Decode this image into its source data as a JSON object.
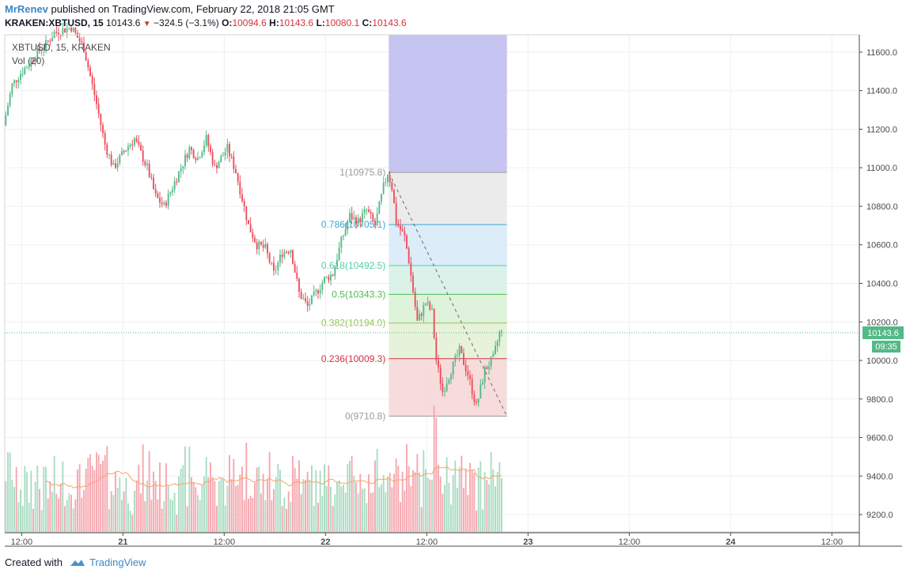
{
  "header": {
    "author": "MrRenev",
    "published_text": "published on TradingView.com, February 22, 2018 21:05 GMT",
    "symbol": "KRAKEN:XBTUSD, 15",
    "last": "10143.6",
    "change": "−324.5 (−3.1%)",
    "open_label": "O:",
    "open": "10094.6",
    "high_label": "H:",
    "high": "10143.6",
    "low_label": "L:",
    "low": "10080.1",
    "close_label": "C:",
    "close": "10143.6"
  },
  "legend": {
    "symbol": "XBTUSD, 15, KRAKEN",
    "volume": "Vol (20)"
  },
  "footer": {
    "created_with": "Created with",
    "brand": "TradingView"
  },
  "colors": {
    "up": "#53b987",
    "down": "#eb4d5c",
    "vol_up": "#a9dcc3",
    "vol_down": "#f5a6ae",
    "vol_ma": "#f8a566",
    "fib_top_band": "#c6c4f0",
    "price_line": "#53b987"
  },
  "chart_data": {
    "type": "candlestick",
    "title": "XBTUSD, 15, KRAKEN",
    "interval_minutes": 15,
    "y_axis": {
      "ticks": [
        9200,
        9400,
        9600,
        9800,
        10000,
        10200,
        10400,
        10600,
        10800,
        11000,
        11200,
        11400,
        11600
      ],
      "tick_labels": [
        "9200.0",
        "9400.0",
        "9600.0",
        "9800.0",
        "10000.0",
        "10200.0",
        "10400.0",
        "10600.0",
        "10800.0",
        "11000.0",
        "11200.0",
        "11400.0",
        "11600.0"
      ],
      "range": [
        9110,
        11690
      ]
    },
    "x_axis": {
      "tick_labels": [
        "12:00",
        "21",
        "12:00",
        "22",
        "12:00",
        "23",
        "12:00",
        "24",
        "12:00"
      ],
      "tick_times": [
        "2018-02-20 12:00",
        "2018-02-21 00:00",
        "2018-02-21 12:00",
        "2018-02-22 00:00",
        "2018-02-22 12:00",
        "2018-02-23 00:00",
        "2018-02-23 12:00",
        "2018-02-24 00:00",
        "2018-02-24 12:00"
      ],
      "range": [
        "2018-02-20 10:00",
        "2018-02-24 15:15"
      ]
    },
    "current_price": {
      "value": 10143.6,
      "label": "10143.6",
      "countdown": "09:35"
    },
    "price_path": [
      [
        "2018-02-20 10:00",
        11220
      ],
      [
        "2018-02-20 11:00",
        11430
      ],
      [
        "2018-02-20 12:00",
        11490
      ],
      [
        "2018-02-20 13:00",
        11540
      ],
      [
        "2018-02-20 14:00",
        11600
      ],
      [
        "2018-02-20 15:00",
        11640
      ],
      [
        "2018-02-20 16:00",
        11700
      ],
      [
        "2018-02-20 18:00",
        11730
      ],
      [
        "2018-02-20 19:30",
        11620
      ],
      [
        "2018-02-20 21:00",
        11330
      ],
      [
        "2018-02-20 22:00",
        11120
      ],
      [
        "2018-02-20 23:00",
        11000
      ],
      [
        "2018-02-21 00:30",
        11100
      ],
      [
        "2018-02-21 01:30",
        11150
      ],
      [
        "2018-02-21 03:00",
        11000
      ],
      [
        "2018-02-21 04:00",
        10850
      ],
      [
        "2018-02-21 05:00",
        10800
      ],
      [
        "2018-02-21 06:30",
        10950
      ],
      [
        "2018-02-21 08:00",
        11100
      ],
      [
        "2018-02-21 09:00",
        11050
      ],
      [
        "2018-02-21 10:00",
        11150
      ],
      [
        "2018-02-21 11:00",
        11000
      ],
      [
        "2018-02-21 12:30",
        11100
      ],
      [
        "2018-02-21 13:30",
        10980
      ],
      [
        "2018-02-21 15:00",
        10700
      ],
      [
        "2018-02-21 16:00",
        10600
      ],
      [
        "2018-02-21 17:00",
        10580
      ],
      [
        "2018-02-21 18:00",
        10450
      ],
      [
        "2018-02-21 19:00",
        10560
      ],
      [
        "2018-02-21 20:00",
        10580
      ],
      [
        "2018-02-21 21:00",
        10350
      ],
      [
        "2018-02-21 22:00",
        10280
      ],
      [
        "2018-02-21 23:00",
        10350
      ],
      [
        "2018-02-22 00:00",
        10420
      ],
      [
        "2018-02-22 01:00",
        10450
      ],
      [
        "2018-02-22 02:00",
        10620
      ],
      [
        "2018-02-22 03:00",
        10750
      ],
      [
        "2018-02-22 04:00",
        10720
      ],
      [
        "2018-02-22 05:00",
        10780
      ],
      [
        "2018-02-22 06:00",
        10700
      ],
      [
        "2018-02-22 07:00",
        10900
      ],
      [
        "2018-02-22 07:30",
        10975
      ],
      [
        "2018-02-22 08:00",
        10900
      ],
      [
        "2018-02-22 08:30",
        10720
      ],
      [
        "2018-02-22 09:30",
        10640
      ],
      [
        "2018-02-22 10:00",
        10520
      ],
      [
        "2018-02-22 11:00",
        10200
      ],
      [
        "2018-02-22 12:00",
        10300
      ],
      [
        "2018-02-22 12:45",
        10250
      ],
      [
        "2018-02-22 13:15",
        10000
      ],
      [
        "2018-02-22 14:00",
        9840
      ],
      [
        "2018-02-22 15:00",
        9950
      ],
      [
        "2018-02-22 16:00",
        10050
      ],
      [
        "2018-02-22 17:00",
        9930
      ],
      [
        "2018-02-22 18:00",
        9760
      ],
      [
        "2018-02-22 19:00",
        9950
      ],
      [
        "2018-02-22 20:00",
        10010
      ],
      [
        "2018-02-22 20:45",
        10143.6
      ]
    ],
    "volume_ma_label": "Vol (20)",
    "fibonacci": {
      "start": {
        "time": "2018-02-22 07:30",
        "price": 10975.8
      },
      "end": {
        "time": "2018-02-22 21:30",
        "price": 9710.8
      },
      "extension_top": 11690,
      "levels": [
        {
          "ratio": 1,
          "label": "1(10975.8)",
          "price": 10975.8,
          "color": "#9b9b9b",
          "fill": "#e8e8e8"
        },
        {
          "ratio": 0.786,
          "label": "0.786(10705.1)",
          "price": 10705.1,
          "color": "#3ea6d8",
          "fill": "#d6e9f7"
        },
        {
          "ratio": 0.618,
          "label": "0.618(10492.5)",
          "price": 10492.5,
          "color": "#4fcfa5",
          "fill": "#d4f0e6"
        },
        {
          "ratio": 0.5,
          "label": "0.5(10343.3)",
          "price": 10343.3,
          "color": "#4cbf4c",
          "fill": "#d9f0d5"
        },
        {
          "ratio": 0.382,
          "label": "0.382(10194.0)",
          "price": 10194.0,
          "color": "#92c65a",
          "fill": "#e2f1d3"
        },
        {
          "ratio": 0.236,
          "label": "0.236(10009.3)",
          "price": 10009.3,
          "color": "#d1333f",
          "fill": "#f6d6d6"
        },
        {
          "ratio": 0,
          "label": "0(9710.8)",
          "price": 9710.8,
          "color": "#9b9b9b",
          "fill": null
        }
      ]
    }
  }
}
